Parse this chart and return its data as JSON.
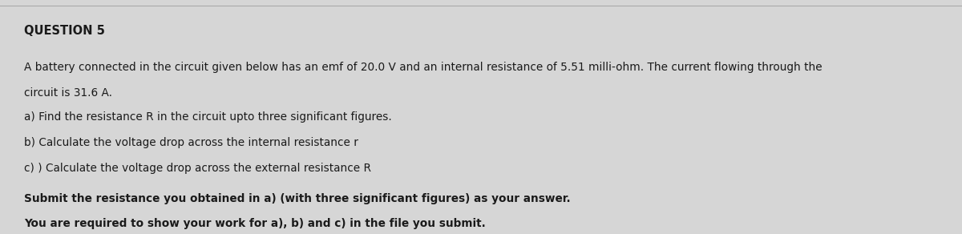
{
  "title": "QUESTION 5",
  "line1": "A battery connected in the circuit given below has an emf of 20.0 V and an internal resistance of 5.51 milli-ohm. The current flowing through the",
  "line2": "circuit is 31.6 A.",
  "line3": "a) Find the resistance R in the circuit upto three significant figures.",
  "line4": "b) Calculate the voltage drop across the internal resistance r",
  "line5": "c) ) Calculate the voltage drop across the external resistance R",
  "line6": "Submit the resistance you obtained in a) (with three significant figures) as your answer.",
  "line7": "You are required to show your work for a), b) and c) in the file you submit.",
  "bg_color": "#d6d6d6",
  "text_color": "#1a1a1a",
  "title_fontsize": 10.5,
  "body_fontsize": 9.8,
  "bold_fontsize": 9.8,
  "border_color": "#aaaaaa"
}
